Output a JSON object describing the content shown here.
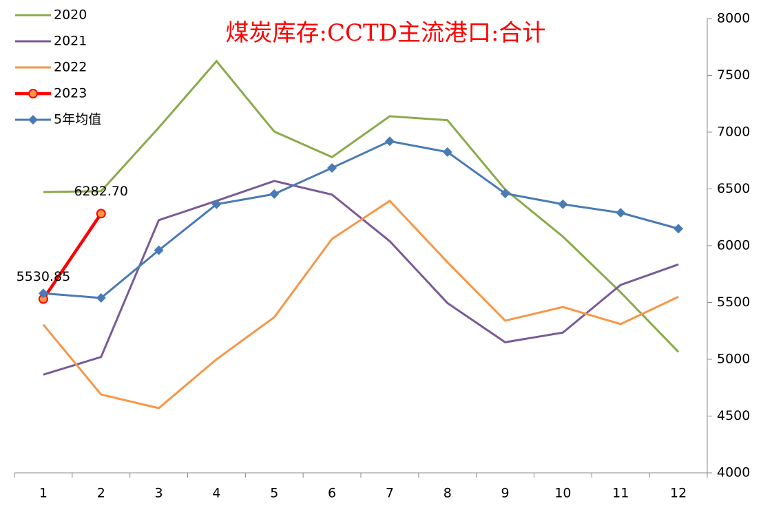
{
  "chart_data": {
    "type": "line",
    "title": "煤炭库存:CCTD主流港口:合计",
    "categories": [
      "1",
      "2",
      "3",
      "4",
      "5",
      "6",
      "7",
      "8",
      "9",
      "10",
      "11",
      "12"
    ],
    "series": [
      {
        "name": "2020",
        "color": "#8aaa4a",
        "values": [
          6473,
          6480,
          7040,
          7625,
          7005,
          6780,
          7140,
          7105,
          6495,
          6080,
          5590,
          5065
        ]
      },
      {
        "name": "2021",
        "color": "#7a5a96",
        "values": [
          4865,
          5020,
          6225,
          6395,
          6570,
          6450,
          6040,
          5495,
          5150,
          5235,
          5655,
          5835
        ]
      },
      {
        "name": "2022",
        "color": "#f79646",
        "values": [
          5305,
          4690,
          4570,
          5000,
          5370,
          6060,
          6395,
          5855,
          5340,
          5460,
          5310,
          5550
        ]
      },
      {
        "name": "2023",
        "color": "#ff0000",
        "marker": "circle",
        "values": [
          5530.85,
          6282.7,
          null,
          null,
          null,
          null,
          null,
          null,
          null,
          null,
          null,
          null
        ],
        "value_labels": [
          "5530.85",
          "6282.70",
          null,
          null,
          null,
          null,
          null,
          null,
          null,
          null,
          null,
          null
        ]
      },
      {
        "name": "5年均值",
        "color": "#4a7ab4",
        "marker": "diamond",
        "values": [
          5580,
          5540,
          5960,
          6365,
          6455,
          6685,
          6920,
          6825,
          6460,
          6365,
          6290,
          6150
        ]
      }
    ],
    "ylim": [
      4000,
      8000
    ],
    "yticks": [
      4000,
      4500,
      5000,
      5500,
      6000,
      6500,
      7000,
      7500,
      8000
    ],
    "y_axis_side": "right",
    "legend": "upper left"
  }
}
